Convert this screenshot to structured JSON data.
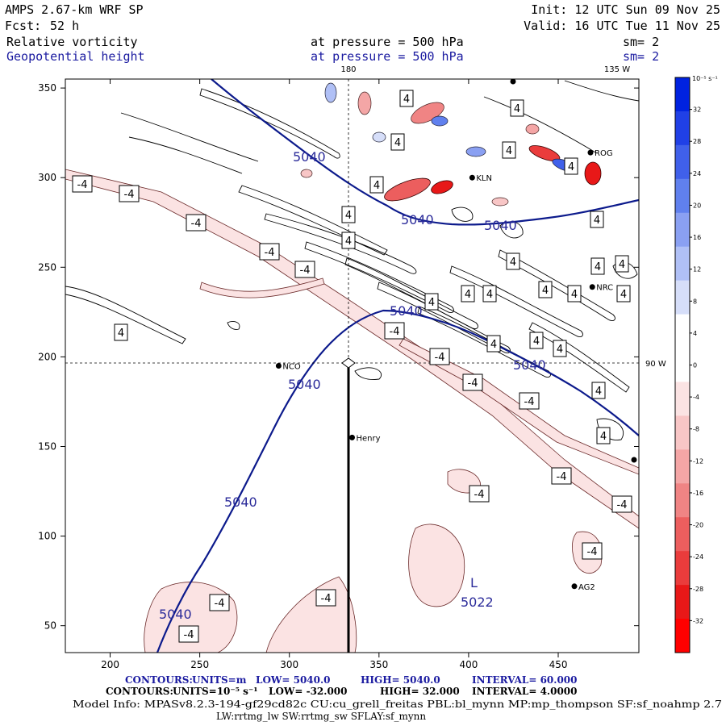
{
  "header": {
    "model": "AMPS 2.67-km WRF SP",
    "fcst_label": "Fcst:",
    "fcst_value": "52 h",
    "init": "Init: 12 UTC Sun 09 Nov 25",
    "valid": "Valid: 16 UTC Tue 11 Nov 25",
    "field1": "Relative vorticity",
    "field2": "Geopotential height",
    "pressure1": "at pressure =  500 hPa",
    "pressure2": "at pressure =  500 hPa",
    "sm1": "sm= 2",
    "sm2": "sm= 2"
  },
  "map_labels": {
    "lon180": "180",
    "lon135": "135 W",
    "lon90": "90 W"
  },
  "colorbar": {
    "unit": "10⁻⁵ s⁻¹",
    "ticks": [
      "32",
      "28",
      "24",
      "20",
      "16",
      "12",
      "8",
      "4",
      "0",
      "-4",
      "-8",
      "-12",
      "-16",
      "-20",
      "-24",
      "-28",
      "-32"
    ],
    "colors": [
      "#0022e0",
      "#2040e6",
      "#4060ea",
      "#6080ee",
      "#8aa0f2",
      "#b0c0f6",
      "#d6def9",
      "#ffffff",
      "#ffffff",
      "#fbe3e3",
      "#f8c6c6",
      "#f4a6a6",
      "#f08484",
      "#ec5e5e",
      "#ea3c3c",
      "#e81818",
      "#ff0000"
    ]
  },
  "chart_data": {
    "type": "map",
    "x_axis": {
      "range": [
        175,
        495
      ],
      "ticks": [
        "200",
        "250",
        "300",
        "350",
        "400",
        "450"
      ]
    },
    "y_axis": {
      "range": [
        35,
        355
      ],
      "ticks": [
        "350",
        "300",
        "250",
        "200",
        "150",
        "100",
        "50"
      ]
    },
    "geopotential_contours": [
      {
        "label": "5040",
        "value": 5040
      },
      {
        "label": "5022",
        "value": 5022,
        "marker": "L"
      }
    ],
    "vorticity_labels": [
      "4",
      "-4"
    ],
    "stations": [
      {
        "name": "NCO",
        "x": 294,
        "y": 195
      },
      {
        "name": "Henry",
        "x": 335,
        "y": 155
      },
      {
        "name": "KLN",
        "x": 402,
        "y": 300
      },
      {
        "name": "ROG",
        "x": 468,
        "y": 314
      },
      {
        "name": "NRC",
        "x": 469,
        "y": 239
      },
      {
        "name": "AG2",
        "x": 459,
        "y": 72
      }
    ]
  },
  "footer": {
    "line1": {
      "contours": "CONTOURS:",
      "units": "UNITS=m",
      "low": "LOW=  5040.0",
      "high": "HIGH=  5040.0",
      "interval": "INTERVAL=   60.000"
    },
    "line2": {
      "contours": "CONTOURS:",
      "units": "UNITS=10⁻⁵ s⁻¹",
      "low": "LOW= -32.000",
      "high": "HIGH=  32.000",
      "interval": "INTERVAL=   4.0000"
    },
    "model_info": "Model Info: MPASv8.2.3-194-gf29cd82c CU:cu_grell_freitas PBL:bl_mynn MP:mp_thompson SF:sf_noahmp 2.7",
    "model_info2": "LW:rrtmg_lw SW:rrtmg_sw SFLAY:sf_mynn"
  }
}
